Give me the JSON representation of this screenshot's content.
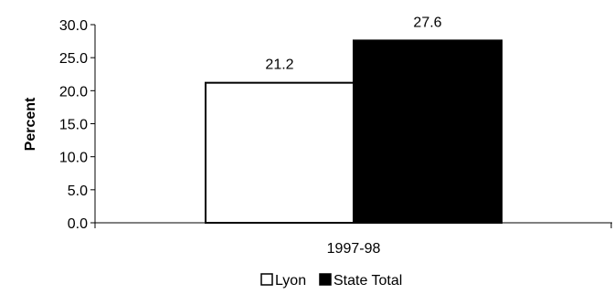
{
  "chart_data": {
    "type": "bar",
    "title": "",
    "xlabel": "",
    "ylabel": "Percent",
    "ylim": [
      0,
      30
    ],
    "yticks": [
      "0.0",
      "5.0",
      "10.0",
      "15.0",
      "20.0",
      "25.0",
      "30.0"
    ],
    "categories": [
      "1997-98"
    ],
    "series": [
      {
        "name": "Lyon",
        "values": [
          21.2
        ],
        "color": "#ffffff",
        "stroke": "#000000"
      },
      {
        "name": "State Total",
        "values": [
          27.6
        ],
        "color": "#000000",
        "stroke": "#000000"
      }
    ],
    "data_labels": [
      [
        "21.2"
      ],
      [
        "27.6"
      ]
    ],
    "grid": false,
    "legend": {
      "position": "bottom"
    }
  }
}
